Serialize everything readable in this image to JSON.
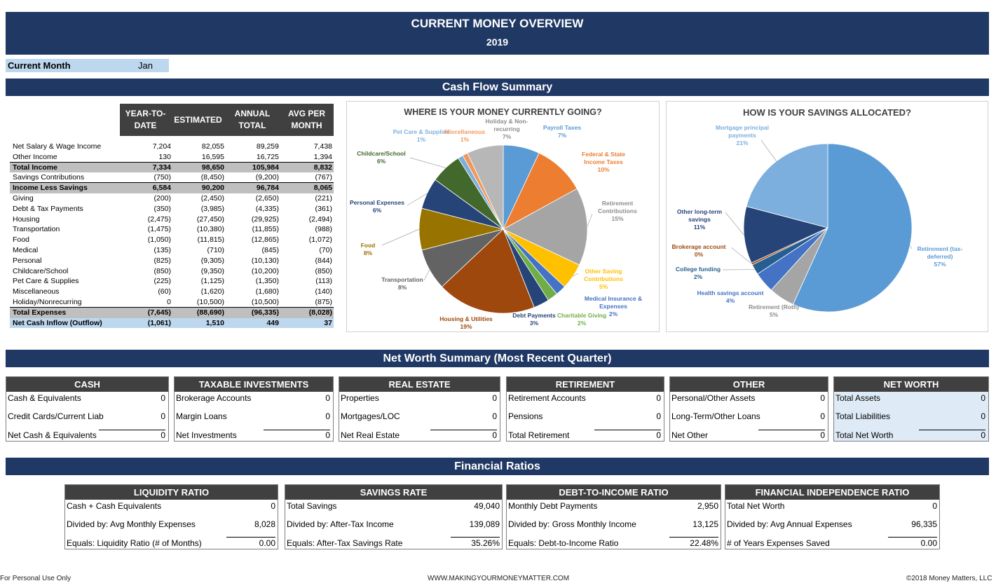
{
  "header": {
    "title": "CURRENT MONEY OVERVIEW",
    "year": "2019"
  },
  "current_month": {
    "label": "Current Month",
    "value": "Jan"
  },
  "sections": {
    "cash_flow": "Cash Flow Summary",
    "net_worth": "Net Worth Summary (Most Recent Quarter)",
    "ratios": "Financial Ratios"
  },
  "cash_flow": {
    "columns": [
      "YEAR-TO-DATE",
      "ESTIMATED",
      "ANNUAL TOTAL",
      "AVG PER MONTH"
    ],
    "rows": [
      {
        "label": "Net Salary & Wage Income",
        "values": [
          "7,204",
          "82,055",
          "89,259",
          "7,438"
        ],
        "style": ""
      },
      {
        "label": "Other Income",
        "values": [
          "130",
          "16,595",
          "16,725",
          "1,394"
        ],
        "style": "bordered"
      },
      {
        "label": "Total Income",
        "values": [
          "7,334",
          "98,650",
          "105,984",
          "8,832"
        ],
        "style": "gray"
      },
      {
        "label": "Savings Contributions",
        "values": [
          "(750)",
          "(8,450)",
          "(9,200)",
          "(767)"
        ],
        "style": "bordered"
      },
      {
        "label": "Income Less Savings",
        "values": [
          "6,584",
          "90,200",
          "96,784",
          "8,065"
        ],
        "style": "gray"
      },
      {
        "label": "Giving",
        "values": [
          "(200)",
          "(2,450)",
          "(2,650)",
          "(221)"
        ],
        "style": ""
      },
      {
        "label": "Debt & Tax Payments",
        "values": [
          "(350)",
          "(3,985)",
          "(4,335)",
          "(361)"
        ],
        "style": ""
      },
      {
        "label": "Housing",
        "values": [
          "(2,475)",
          "(27,450)",
          "(29,925)",
          "(2,494)"
        ],
        "style": ""
      },
      {
        "label": "Transportation",
        "values": [
          "(1,475)",
          "(10,380)",
          "(11,855)",
          "(988)"
        ],
        "style": ""
      },
      {
        "label": "Food",
        "values": [
          "(1,050)",
          "(11,815)",
          "(12,865)",
          "(1,072)"
        ],
        "style": ""
      },
      {
        "label": "Medical",
        "values": [
          "(135)",
          "(710)",
          "(845)",
          "(70)"
        ],
        "style": ""
      },
      {
        "label": "Personal",
        "values": [
          "(825)",
          "(9,305)",
          "(10,130)",
          "(844)"
        ],
        "style": ""
      },
      {
        "label": "Childcare/School",
        "values": [
          "(850)",
          "(9,350)",
          "(10,200)",
          "(850)"
        ],
        "style": ""
      },
      {
        "label": "Pet Care & Supplies",
        "values": [
          "(225)",
          "(1,125)",
          "(1,350)",
          "(113)"
        ],
        "style": ""
      },
      {
        "label": "Miscellaneous",
        "values": [
          "(60)",
          "(1,620)",
          "(1,680)",
          "(140)"
        ],
        "style": ""
      },
      {
        "label": "Holiday/Nonrecurring",
        "values": [
          "0",
          "(10,500)",
          "(10,500)",
          "(875)"
        ],
        "style": "bordered"
      },
      {
        "label": "Total Expenses",
        "values": [
          "(7,645)",
          "(88,690)",
          "(96,335)",
          "(8,028)"
        ],
        "style": "gray"
      },
      {
        "label": "Net Cash Inflow (Outflow)",
        "values": [
          "(1,061)",
          "1,510",
          "449",
          "37"
        ],
        "style": "blue"
      }
    ]
  },
  "chart_data": [
    {
      "type": "pie",
      "title": "WHERE IS YOUR MONEY CURRENTLY GOING?",
      "slices": [
        {
          "label": "Payroll Taxes",
          "pct": "7%",
          "value": 7,
          "color": "#5b9bd5"
        },
        {
          "label": "Federal & State Income Taxes",
          "pct": "10%",
          "value": 10,
          "color": "#ed7d31"
        },
        {
          "label": "Retirement Contributions",
          "pct": "15%",
          "value": 15,
          "color": "#a5a5a5"
        },
        {
          "label": "Other Saving Contributions",
          "pct": "5%",
          "value": 5,
          "color": "#ffc000"
        },
        {
          "label": "Medical Insurance & Expenses",
          "pct": "2%",
          "value": 2,
          "color": "#4472c4"
        },
        {
          "label": "Charitable Giving",
          "pct": "2%",
          "value": 2,
          "color": "#70ad47"
        },
        {
          "label": "Debt Payments",
          "pct": "3%",
          "value": 3,
          "color": "#264478"
        },
        {
          "label": "Housing & Utilities",
          "pct": "19%",
          "value": 19,
          "color": "#9e480e"
        },
        {
          "label": "Transportation",
          "pct": "8%",
          "value": 8,
          "color": "#636363"
        },
        {
          "label": "Food",
          "pct": "8%",
          "value": 8,
          "color": "#997300"
        },
        {
          "label": "Personal Expenses",
          "pct": "6%",
          "value": 6,
          "color": "#264478"
        },
        {
          "label": "Childcare/School",
          "pct": "6%",
          "value": 6,
          "color": "#43682b"
        },
        {
          "label": "Pet Care & Supplies",
          "pct": "1%",
          "value": 1,
          "color": "#7cafdd"
        },
        {
          "label": "Miscellaneous",
          "pct": "1%",
          "value": 1,
          "color": "#f1975a"
        },
        {
          "label": "Holiday & Non-recurring",
          "pct": "7%",
          "value": 7,
          "color": "#b7b7b7"
        }
      ]
    },
    {
      "type": "pie",
      "title": "HOW IS YOUR SAVINGS ALLOCATED?",
      "slices": [
        {
          "label": "Retirement (tax-deferred)",
          "pct": "57%",
          "value": 57,
          "color": "#5b9bd5"
        },
        {
          "label": "Retirement (Roth)",
          "pct": "5%",
          "value": 5,
          "color": "#a5a5a5"
        },
        {
          "label": "Health savings account",
          "pct": "4%",
          "value": 4,
          "color": "#4472c4"
        },
        {
          "label": "College funding",
          "pct": "2%",
          "value": 2,
          "color": "#255e91"
        },
        {
          "label": "Brokerage account",
          "pct": "0%",
          "value": 0.4,
          "color": "#9e480e"
        },
        {
          "label": "Other long-term savings",
          "pct": "11%",
          "value": 11,
          "color": "#264478"
        },
        {
          "label": "Mortgage principal payments",
          "pct": "21%",
          "value": 21,
          "color": "#7cafdd"
        }
      ]
    }
  ],
  "net_worth": [
    {
      "title": "CASH",
      "rows": [
        [
          "Cash & Equivalents",
          "0"
        ],
        [
          "Credit Cards/Current Liab",
          "0"
        ],
        [
          "Net Cash & Equivalents",
          "0"
        ]
      ]
    },
    {
      "title": "TAXABLE INVESTMENTS",
      "rows": [
        [
          "Brokerage Accounts",
          "0"
        ],
        [
          "Margin Loans",
          "0"
        ],
        [
          "Net Investments",
          "0"
        ]
      ]
    },
    {
      "title": "REAL ESTATE",
      "rows": [
        [
          "Properties",
          "0"
        ],
        [
          "Mortgages/LOC",
          "0"
        ],
        [
          "Net Real Estate",
          "0"
        ]
      ]
    },
    {
      "title": "RETIREMENT",
      "rows": [
        [
          "Retirement Accounts",
          "0"
        ],
        [
          "Pensions",
          "0"
        ],
        [
          "Total Retirement",
          "0"
        ]
      ]
    },
    {
      "title": "OTHER",
      "rows": [
        [
          "Personal/Other Assets",
          "0"
        ],
        [
          "Long-Term/Other Loans",
          "0"
        ],
        [
          "Net Other",
          "0"
        ]
      ]
    },
    {
      "title": "NET WORTH",
      "rows": [
        [
          "Total Assets",
          "0"
        ],
        [
          "Total Liabilities",
          "0"
        ],
        [
          "Total Net Worth",
          "0"
        ]
      ]
    }
  ],
  "ratios": [
    {
      "title": "LIQUIDITY RATIO",
      "rows": [
        [
          "Cash + Cash Equivalents",
          "0"
        ],
        [
          "Divided by: Avg Monthly Expenses",
          "8,028"
        ],
        [
          "Equals: Liquidity Ratio (# of Months)",
          "0.00"
        ]
      ]
    },
    {
      "title": "SAVINGS RATE",
      "rows": [
        [
          "Total Savings",
          "49,040"
        ],
        [
          "Divided by: After-Tax Income",
          "139,089"
        ],
        [
          "Equals: After-Tax Savings Rate",
          "35.26%"
        ]
      ]
    },
    {
      "title": "DEBT-TO-INCOME RATIO",
      "rows": [
        [
          "Monthly Debt Payments",
          "2,950"
        ],
        [
          "Divided by: Gross Monthly Income",
          "13,125"
        ],
        [
          "Equals: Debt-to-Income Ratio",
          "22.48%"
        ]
      ]
    },
    {
      "title": "FINANCIAL INDEPENDENCE RATIO",
      "rows": [
        [
          "Total Net Worth",
          "0"
        ],
        [
          "Divided by: Avg Annual Expenses",
          "96,335"
        ],
        [
          "# of Years Expenses Saved",
          "0.00"
        ]
      ]
    }
  ],
  "footer": {
    "left": "For Personal Use Only",
    "center": "WWW.MAKINGYOURMONEYMATTER.COM",
    "right": "©2018 Money Matters, LLC"
  }
}
